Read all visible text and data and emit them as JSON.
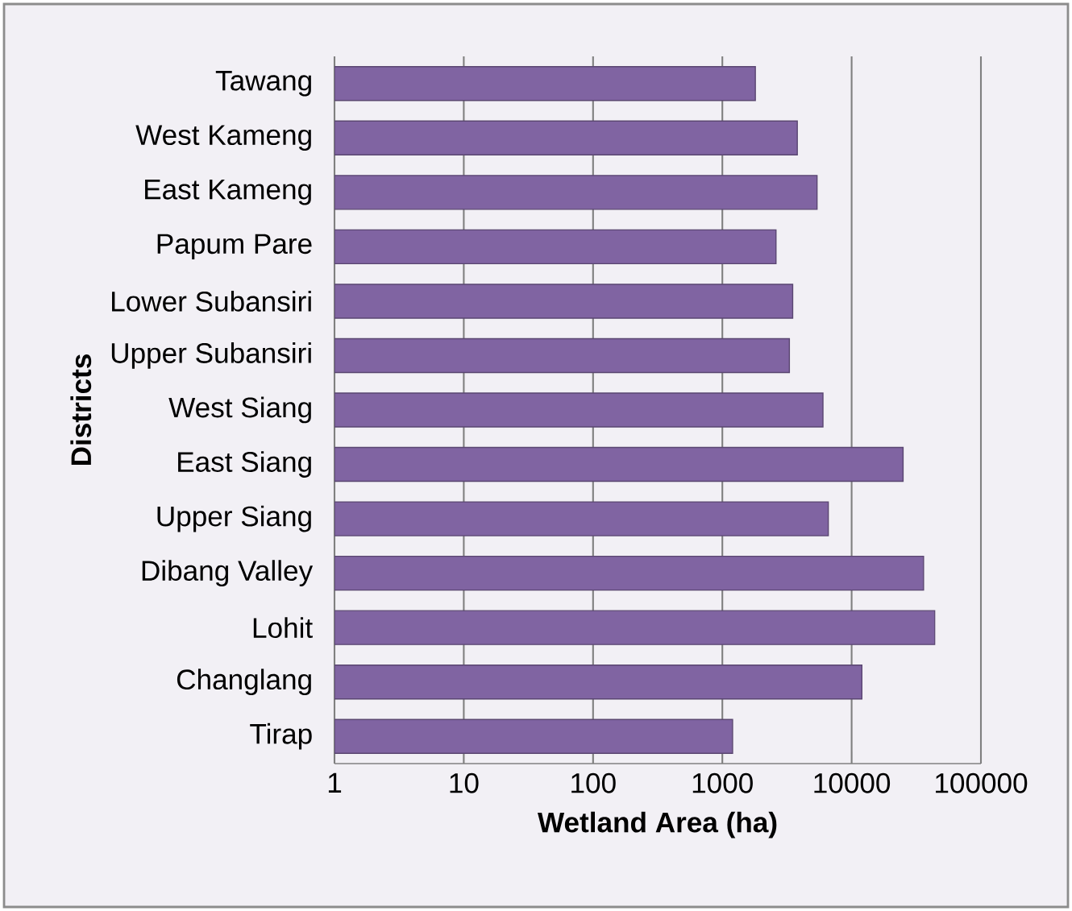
{
  "chart_data": {
    "type": "bar",
    "orientation": "horizontal",
    "xlabel": "Wetland Area (ha)",
    "ylabel": "Districts",
    "categories": [
      "Tawang",
      "West Kameng",
      "East Kameng",
      "Papum Pare",
      "Lower Subansiri",
      "Upper Subansiri",
      "West Siang",
      "East Siang",
      "Upper Siang",
      "Dibang Valley",
      "Lohit",
      "Changlang",
      "Tirap"
    ],
    "values": [
      1800,
      3800,
      5400,
      2600,
      3500,
      3300,
      6000,
      25000,
      6600,
      36000,
      44000,
      12000,
      1200
    ],
    "color": "#8064a2",
    "log": "x",
    "xlim": [
      1,
      100000
    ],
    "xticks": [
      1,
      10,
      100,
      1000,
      10000,
      100000
    ],
    "grid": "x"
  }
}
